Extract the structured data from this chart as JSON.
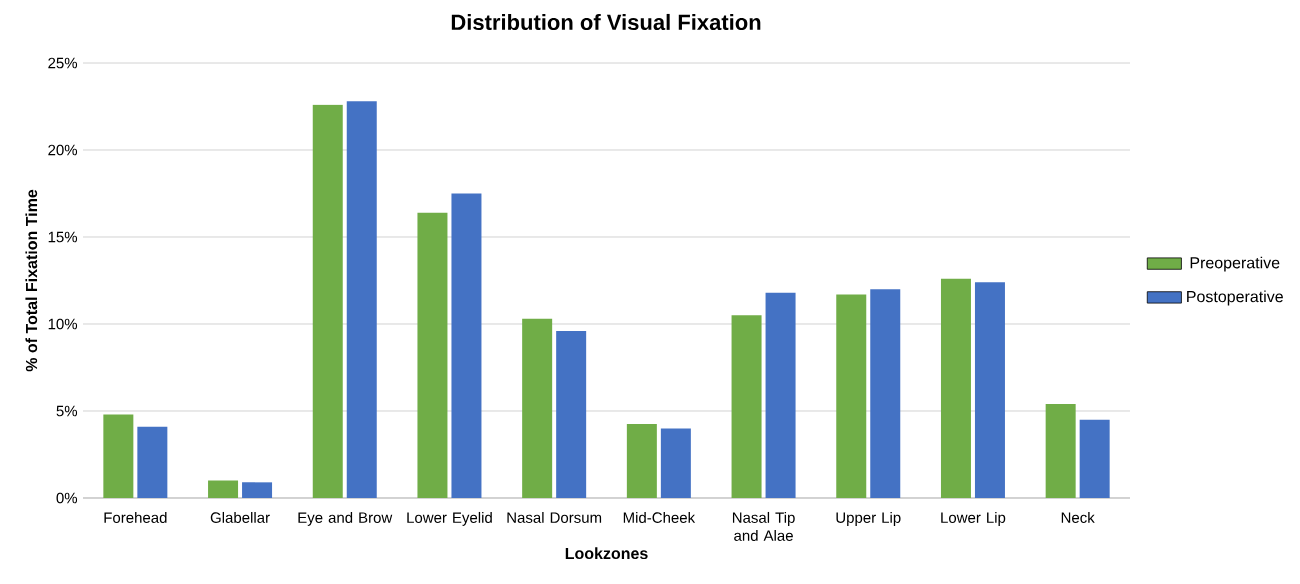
{
  "chart_data": {
    "type": "bar",
    "title": "Distribution of Visual Fixation",
    "xlabel": "Lookzones",
    "ylabel": "% of Total  Fixation Time",
    "categories": [
      "Forehead",
      "Glabellar",
      "Eye and Brow",
      "Lower  Eyelid",
      "Nasal Dorsum",
      "Mid-Cheek",
      "Nasal Tip and Alae",
      "Upper Lip",
      "Lower Lip",
      "Neck"
    ],
    "series": [
      {
        "name": "Preoperative",
        "color": "#70ad47",
        "values": [
          4.8,
          1.0,
          22.6,
          16.4,
          10.3,
          4.25,
          10.5,
          11.7,
          12.6,
          5.4
        ]
      },
      {
        "name": "Postoperative",
        "color": "#4472c4",
        "values": [
          4.1,
          0.9,
          22.8,
          17.5,
          9.6,
          4.0,
          11.8,
          12.0,
          12.4,
          4.5
        ]
      }
    ],
    "ylim": [
      0,
      25
    ],
    "yticks": [
      {
        "value": 0,
        "label": "0%"
      },
      {
        "value": 5,
        "label": "5%"
      },
      {
        "value": 10,
        "label": "10%"
      },
      {
        "value": 15,
        "label": "15%"
      },
      {
        "value": 20,
        "label": "20%"
      },
      {
        "value": 25,
        "label": "25%"
      }
    ],
    "grid": "y",
    "legend": "right"
  }
}
